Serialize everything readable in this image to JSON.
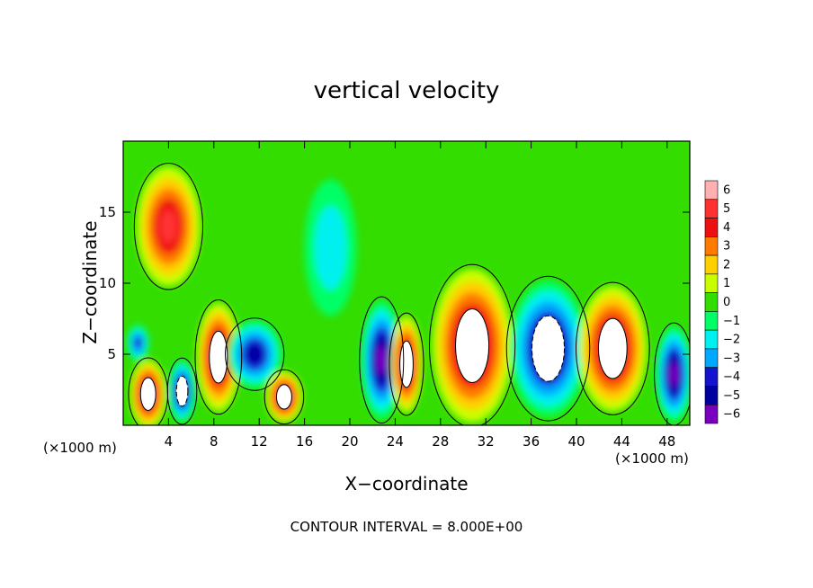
{
  "chart_data": {
    "type": "heatmap",
    "title": "vertical velocity",
    "xlabel": "X−coordinate",
    "ylabel": "Z−coordinate",
    "x_units_left": "(×1000 m)",
    "x_units_right": "(×1000 m)",
    "xlim": [
      0,
      50
    ],
    "ylim": [
      0,
      20
    ],
    "x_ticks": [
      4,
      8,
      12,
      16,
      20,
      24,
      28,
      32,
      36,
      40,
      44,
      48
    ],
    "y_ticks": [
      5,
      10,
      15
    ],
    "x_tick_labels": [
      "4",
      "8",
      "12",
      "16",
      "20",
      "24",
      "28",
      "32",
      "36",
      "40",
      "44",
      "48"
    ],
    "y_tick_labels": [
      "5",
      "10",
      "15"
    ],
    "contour_interval": "CONTOUR INTERVAL = 8.000E+00",
    "colorbar": {
      "levels": [
        6,
        5,
        4,
        3,
        2,
        1,
        0,
        -1,
        -2,
        -3,
        -4,
        -5,
        -6
      ],
      "labels": [
        "6",
        "5",
        "4",
        "3",
        "2",
        "1",
        "0",
        "−1",
        "−2",
        "−3",
        "−4",
        "−5",
        "−6"
      ],
      "colors": [
        "#ffb0b0",
        "#ff3030",
        "#ee1010",
        "#ff7a00",
        "#ffd000",
        "#c8ff00",
        "#33dd00",
        "#00ff66",
        "#00f0f0",
        "#00a8ff",
        "#1414d0",
        "#0000a0",
        "#7a00c0"
      ]
    },
    "background_color": "#33dd00",
    "features": [
      {
        "x": 2.2,
        "z": 2.2,
        "rx": 1.6,
        "rz": 2.4,
        "w": 8
      },
      {
        "x": 5.2,
        "z": 2.4,
        "rx": 1.2,
        "rz": 2.2,
        "w": -7
      },
      {
        "x": 8.4,
        "z": 4.8,
        "rx": 1.9,
        "rz": 3.8,
        "w": 8
      },
      {
        "x": 4.0,
        "z": 14.0,
        "rx": 2.8,
        "rz": 4.2,
        "w": 5
      },
      {
        "x": 1.3,
        "z": 5.8,
        "rx": 1.0,
        "rz": 1.3,
        "w": -4
      },
      {
        "x": 11.6,
        "z": 5.0,
        "rx": 2.4,
        "rz": 2.4,
        "w": -5
      },
      {
        "x": 14.2,
        "z": 2.0,
        "rx": 1.6,
        "rz": 1.8,
        "w": 7
      },
      {
        "x": 18.3,
        "z": 12.5,
        "rx": 2.3,
        "rz": 4.8,
        "w": -2
      },
      {
        "x": 22.8,
        "z": 4.6,
        "rx": 1.8,
        "rz": 4.2,
        "w": -6
      },
      {
        "x": 25.0,
        "z": 4.3,
        "rx": 1.4,
        "rz": 3.4,
        "w": 8
      },
      {
        "x": 30.8,
        "z": 5.6,
        "rx": 3.5,
        "rz": 5.4,
        "w": 9
      },
      {
        "x": 37.5,
        "z": 5.4,
        "rx": 3.4,
        "rz": 4.8,
        "w": -8
      },
      {
        "x": 43.2,
        "z": 5.4,
        "rx": 3.0,
        "rz": 4.4,
        "w": 8
      },
      {
        "x": 48.6,
        "z": 3.6,
        "rx": 1.6,
        "rz": 3.4,
        "w": -6
      }
    ]
  }
}
